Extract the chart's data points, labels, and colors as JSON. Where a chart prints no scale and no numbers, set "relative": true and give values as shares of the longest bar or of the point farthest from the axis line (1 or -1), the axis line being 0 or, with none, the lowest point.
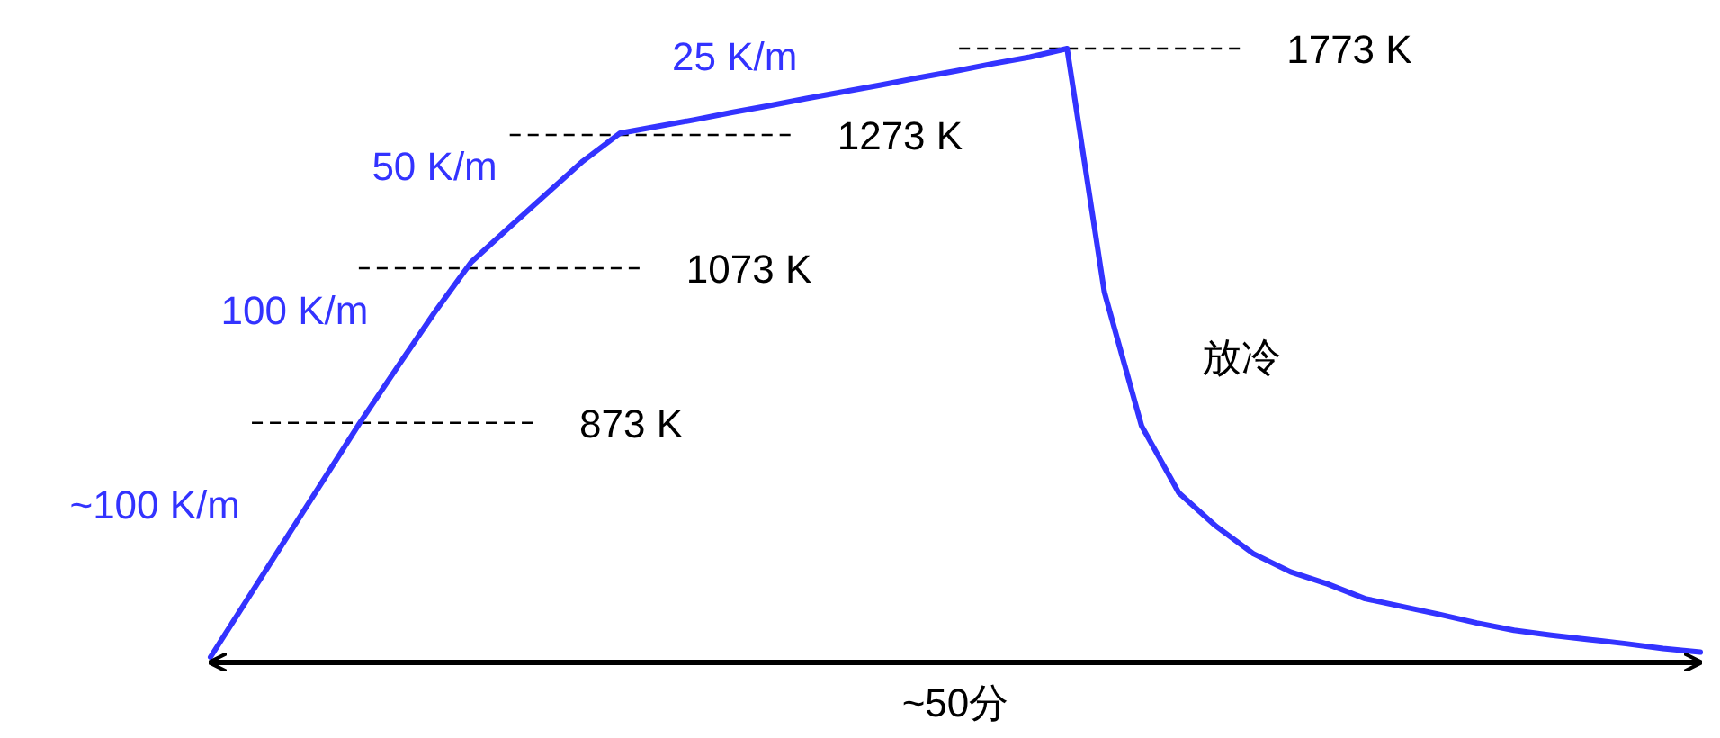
{
  "chart_data": {
    "type": "line",
    "relative": true,
    "xlabel": "~50分",
    "categories": [
      null,
      null,
      null,
      null,
      null,
      null,
      null,
      null,
      null,
      null,
      null,
      null,
      null,
      null,
      null,
      null,
      null,
      null,
      null,
      null,
      null,
      null,
      null,
      null,
      null,
      null,
      null,
      null,
      null,
      null,
      null,
      null,
      null,
      null,
      null,
      null,
      null,
      null,
      null,
      null,
      null
    ],
    "series": [
      {
        "color": "#3333ff",
        "values": [
          0,
          0.096,
          0.192,
          0.288,
          0.384,
          0.475,
          0.565,
          0.649,
          0.705,
          0.76,
          0.815,
          0.861,
          0.872,
          0.883,
          0.895,
          0.906,
          0.918,
          0.929,
          0.94,
          0.952,
          0.963,
          0.975,
          0.986,
          1.0,
          0.6,
          0.38,
          0.27,
          0.215,
          0.17,
          0.14,
          0.12,
          0.096,
          0.083,
          0.07,
          0.056,
          0.044,
          0.036,
          0.029,
          0.022,
          0.014,
          0.008
        ]
      }
    ],
    "ref_lines": [
      {
        "axis": "y",
        "value": 0.385,
        "label": "873 K",
        "line_style": "dashed",
        "color": "#000000"
      },
      {
        "axis": "y",
        "value": 0.639,
        "label": "1073 K",
        "line_style": "dashed",
        "color": "#000000"
      },
      {
        "axis": "y",
        "value": 0.858,
        "label": "1273 K",
        "line_style": "dashed",
        "color": "#000000"
      },
      {
        "axis": "y",
        "value": 1.0,
        "label": "1773 K",
        "line_style": "dashed",
        "color": "#000000"
      }
    ],
    "annotations": [
      "~100 K/m",
      "100 K/m",
      "50 K/m",
      "25 K/m",
      "放冷"
    ]
  }
}
